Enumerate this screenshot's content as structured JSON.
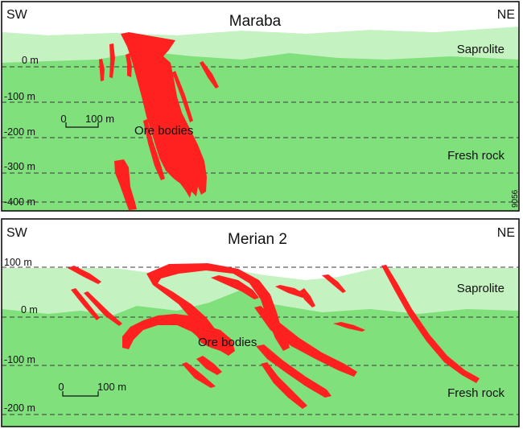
{
  "panels": [
    {
      "title": "Maraba",
      "left_label": "SW",
      "right_label": "NE",
      "depth_labels": [
        "0 m",
        "-100 m",
        "-200 m",
        "-300 m",
        "-400 m"
      ],
      "zones": [
        "Saprolite",
        "Fresh rock"
      ],
      "ore_label": "Ore bodies",
      "scale": {
        "start": "0",
        "end": "100 m"
      },
      "figure_code": "9056"
    },
    {
      "title": "Merian 2",
      "left_label": "SW",
      "right_label": "NE",
      "depth_labels": [
        "100 m",
        "0 m",
        "-100 m",
        "-200 m"
      ],
      "zones": [
        "Saprolite",
        "Fresh rock"
      ],
      "ore_label": "Ore bodies",
      "scale": {
        "start": "0",
        "end": "100 m"
      }
    }
  ],
  "colors": {
    "ore": "#ff2020",
    "fresh_rock": "#7fe07c",
    "saprolite": "#c5f2c1",
    "frame": "#111111"
  }
}
